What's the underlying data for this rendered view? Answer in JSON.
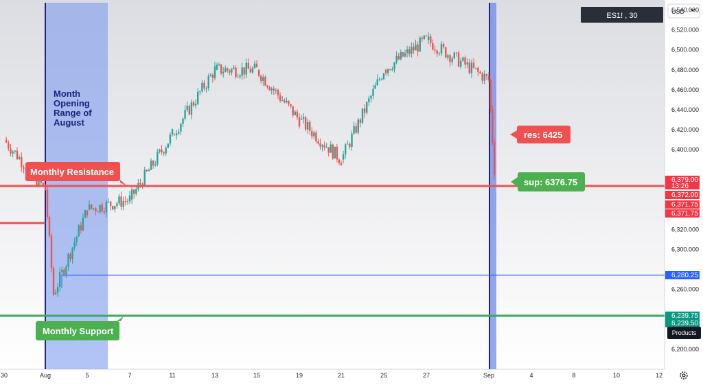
{
  "symbol_badge": "ES1! , 30",
  "currency": "USD",
  "products_label": "Products",
  "settings_icon": "gear-icon",
  "colors": {
    "up": "#26a69a",
    "down": "#ef5350",
    "resistance": "#f05050",
    "support": "#4caf50",
    "range_fill": "#7e9bee",
    "range_line": "#1a237e",
    "blue_line": "#2962ff",
    "price_tag_red": "#f23645",
    "price_tag_teal": "#089981"
  },
  "annotations": {
    "range_label": "Month Opening Range of August",
    "monthly_resistance": "Monthly Resistance",
    "monthly_support": "Monthly Support",
    "res_callout": "res: 6425",
    "sup_callout": "sup: 6376.75"
  },
  "price_tags": [
    {
      "label": "6,379.00",
      "sub": "13:26",
      "color": "red"
    },
    {
      "label": "6,372.00",
      "color": "red"
    },
    {
      "label": "6,371.75",
      "color": "red"
    },
    {
      "label": "6,371.75",
      "color": "red"
    },
    {
      "label": "6,280.25",
      "color": "blue"
    },
    {
      "label": "6,239.75",
      "color": "teal"
    },
    {
      "label": "6,239.50",
      "color": "teal"
    }
  ],
  "chart_data": {
    "type": "candlestick",
    "ylim": [
      6180,
      6550
    ],
    "y_ticks": [
      6540,
      6520,
      6500,
      6480,
      6460,
      6440,
      6420,
      6400,
      6320,
      6300,
      6260,
      6200
    ],
    "x_ticks": [
      "30",
      "Aug",
      "5",
      "7",
      "11",
      "13",
      "15",
      "19",
      "21",
      "25",
      "27",
      "Sep",
      "4",
      "8",
      "10",
      "12"
    ],
    "levels": {
      "monthly_resistance": 6371.75,
      "monthly_support": 6239.75,
      "opening_range_low": 6280.25,
      "res": 6425,
      "sup": 6376.75
    },
    "waypoints": [
      {
        "x": "30",
        "y": 6410
      },
      {
        "x": "Aug",
        "y": 6360
      },
      {
        "x": "Aug",
        "y": 6255
      },
      {
        "x": "5",
        "y": 6340
      },
      {
        "x": "7",
        "y": 6350
      },
      {
        "x": "11",
        "y": 6415
      },
      {
        "x": "13",
        "y": 6480
      },
      {
        "x": "15",
        "y": 6480
      },
      {
        "x": "19",
        "y": 6430
      },
      {
        "x": "21",
        "y": 6390
      },
      {
        "x": "25",
        "y": 6480
      },
      {
        "x": "27",
        "y": 6510
      },
      {
        "x": "Sep",
        "y": 6470
      },
      {
        "x": "Sep",
        "y": 6380
      }
    ]
  }
}
